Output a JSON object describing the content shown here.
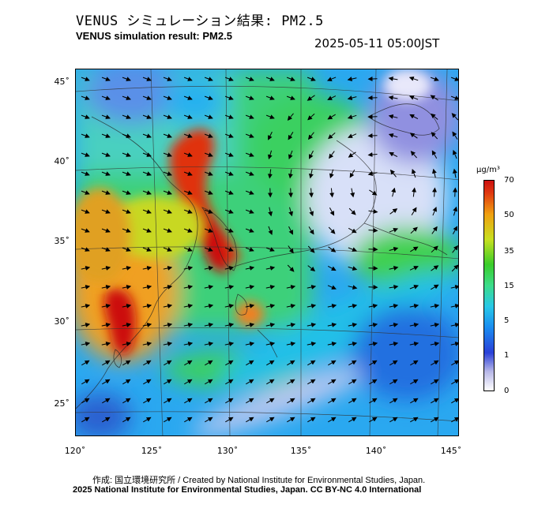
{
  "title_jp": "VENUS シミュレーション結果: PM2.5",
  "title_en": "VENUS simulation result: PM2.5",
  "datetime": "2025-05-11 05:00JST",
  "lat_labels": [
    "45˚",
    "40˚",
    "35˚",
    "30˚",
    "25˚"
  ],
  "lon_labels": [
    "120˚",
    "125˚",
    "130˚",
    "135˚",
    "140˚",
    "145˚"
  ],
  "colorbar": {
    "unit": "µg/m³",
    "labels": [
      "70",
      "50",
      "35",
      "15",
      "5",
      "1",
      "0"
    ]
  },
  "credit_line1": "作成: 国立環境研究所 / Created by National Institute for Environmental Studies, Japan.",
  "credit_line2": "2025 National Institute for Environmental Studies, Japan. CC BY-NC 4.0 International"
}
